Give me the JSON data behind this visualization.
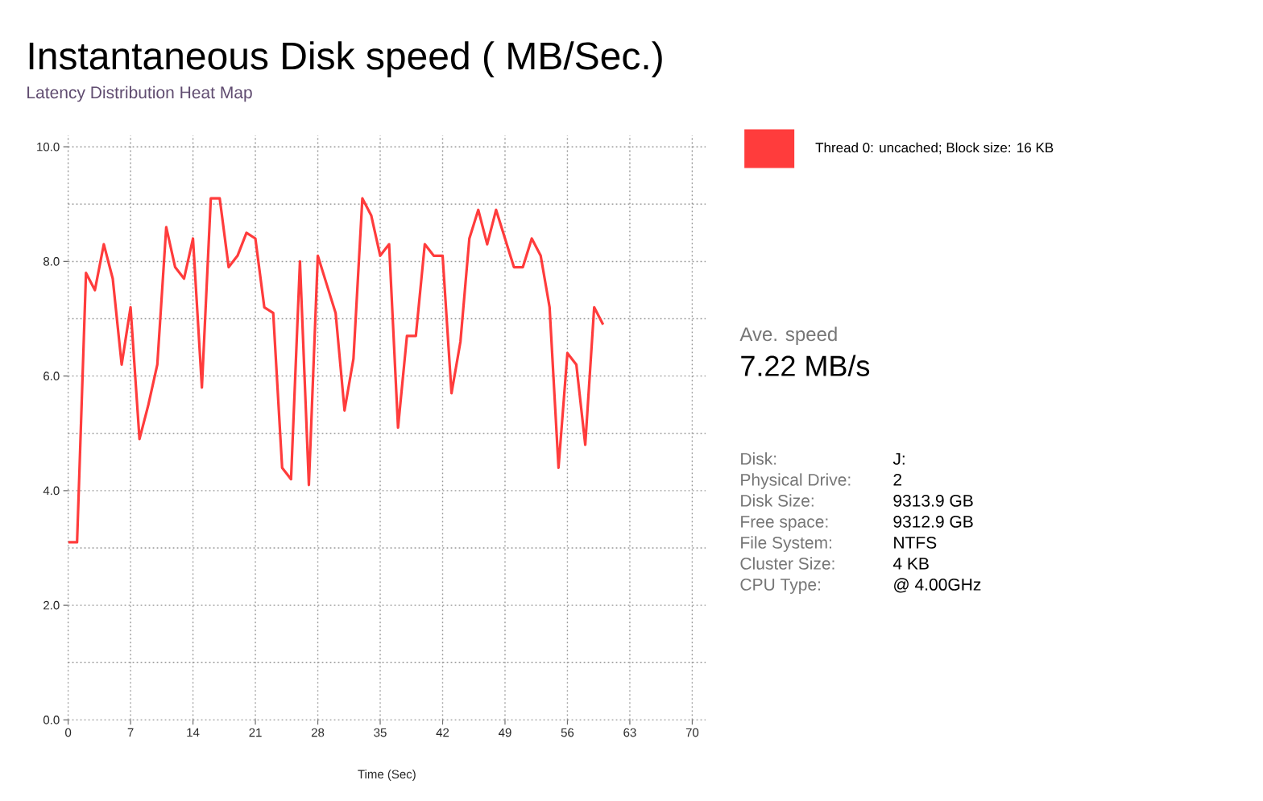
{
  "chart_data": {
    "type": "line",
    "title": "Instantaneous Disk speed ( MB/Sec.)",
    "subtitle": "Latency Distribution Heat Map",
    "xlabel": "Time (Sec)",
    "x": [
      0,
      1,
      2,
      3,
      4,
      5,
      6,
      7,
      8,
      9,
      10,
      11,
      12,
      13,
      14,
      15,
      16,
      17,
      18,
      19,
      20,
      21,
      22,
      23,
      24,
      25,
      26,
      27,
      28,
      29,
      30,
      31,
      32,
      33,
      34,
      35,
      36,
      37,
      38,
      39,
      40,
      41,
      42,
      43,
      44,
      45,
      46,
      47,
      48,
      49,
      50,
      51,
      52,
      53,
      54,
      55,
      56,
      57,
      58,
      59,
      60
    ],
    "series": [
      {
        "name": "Thread 0: uncached; Block size: 16 KB",
        "color": "#ff3c3c",
        "values": [
          3.1,
          3.1,
          7.8,
          7.5,
          8.3,
          7.7,
          6.2,
          7.2,
          4.9,
          5.5,
          6.2,
          8.6,
          7.9,
          7.7,
          8.4,
          5.8,
          9.1,
          9.1,
          7.9,
          8.1,
          8.5,
          8.4,
          7.2,
          7.1,
          4.4,
          4.2,
          8.0,
          4.1,
          8.1,
          7.6,
          7.1,
          5.4,
          6.3,
          9.1,
          8.8,
          8.1,
          8.3,
          5.1,
          6.7,
          6.7,
          8.3,
          8.1,
          8.1,
          5.7,
          6.6,
          8.4,
          8.9,
          8.3,
          8.9,
          8.4,
          7.9,
          7.9,
          8.4,
          8.1,
          7.2,
          4.4,
          6.4,
          6.2,
          4.8,
          7.2,
          6.9
        ]
      }
    ],
    "xlim": [
      0,
      71.5
    ],
    "ylim": [
      0,
      10.2
    ],
    "xticks": [
      0,
      7,
      14,
      21,
      28,
      35,
      42,
      49,
      56,
      63,
      70
    ],
    "yticks": [
      {
        "value": 0,
        "label": "0.0"
      },
      {
        "value": 1,
        "label": null
      },
      {
        "value": 2,
        "label": "2.0"
      },
      {
        "value": 3,
        "label": null
      },
      {
        "value": 4,
        "label": "4.0"
      },
      {
        "value": 5,
        "label": null
      },
      {
        "value": 6,
        "label": "6.0"
      },
      {
        "value": 7,
        "label": null
      },
      {
        "value": 8,
        "label": "8.0"
      },
      {
        "value": 9,
        "label": null
      },
      {
        "value": 10,
        "label": "10.0"
      }
    ],
    "grid": true,
    "legend": "right",
    "annotations": [
      "Ave. speed",
      "7.22 MB/s",
      "Disk:",
      "J:",
      "Physical Drive:",
      "2",
      "Disk Size:",
      "9313.9 GB",
      "Free space:",
      "9312.9 GB",
      "File System:",
      "NTFS",
      "Cluster Size:",
      "4 KB",
      "CPU Type:",
      "@ 4.00GHz"
    ]
  }
}
